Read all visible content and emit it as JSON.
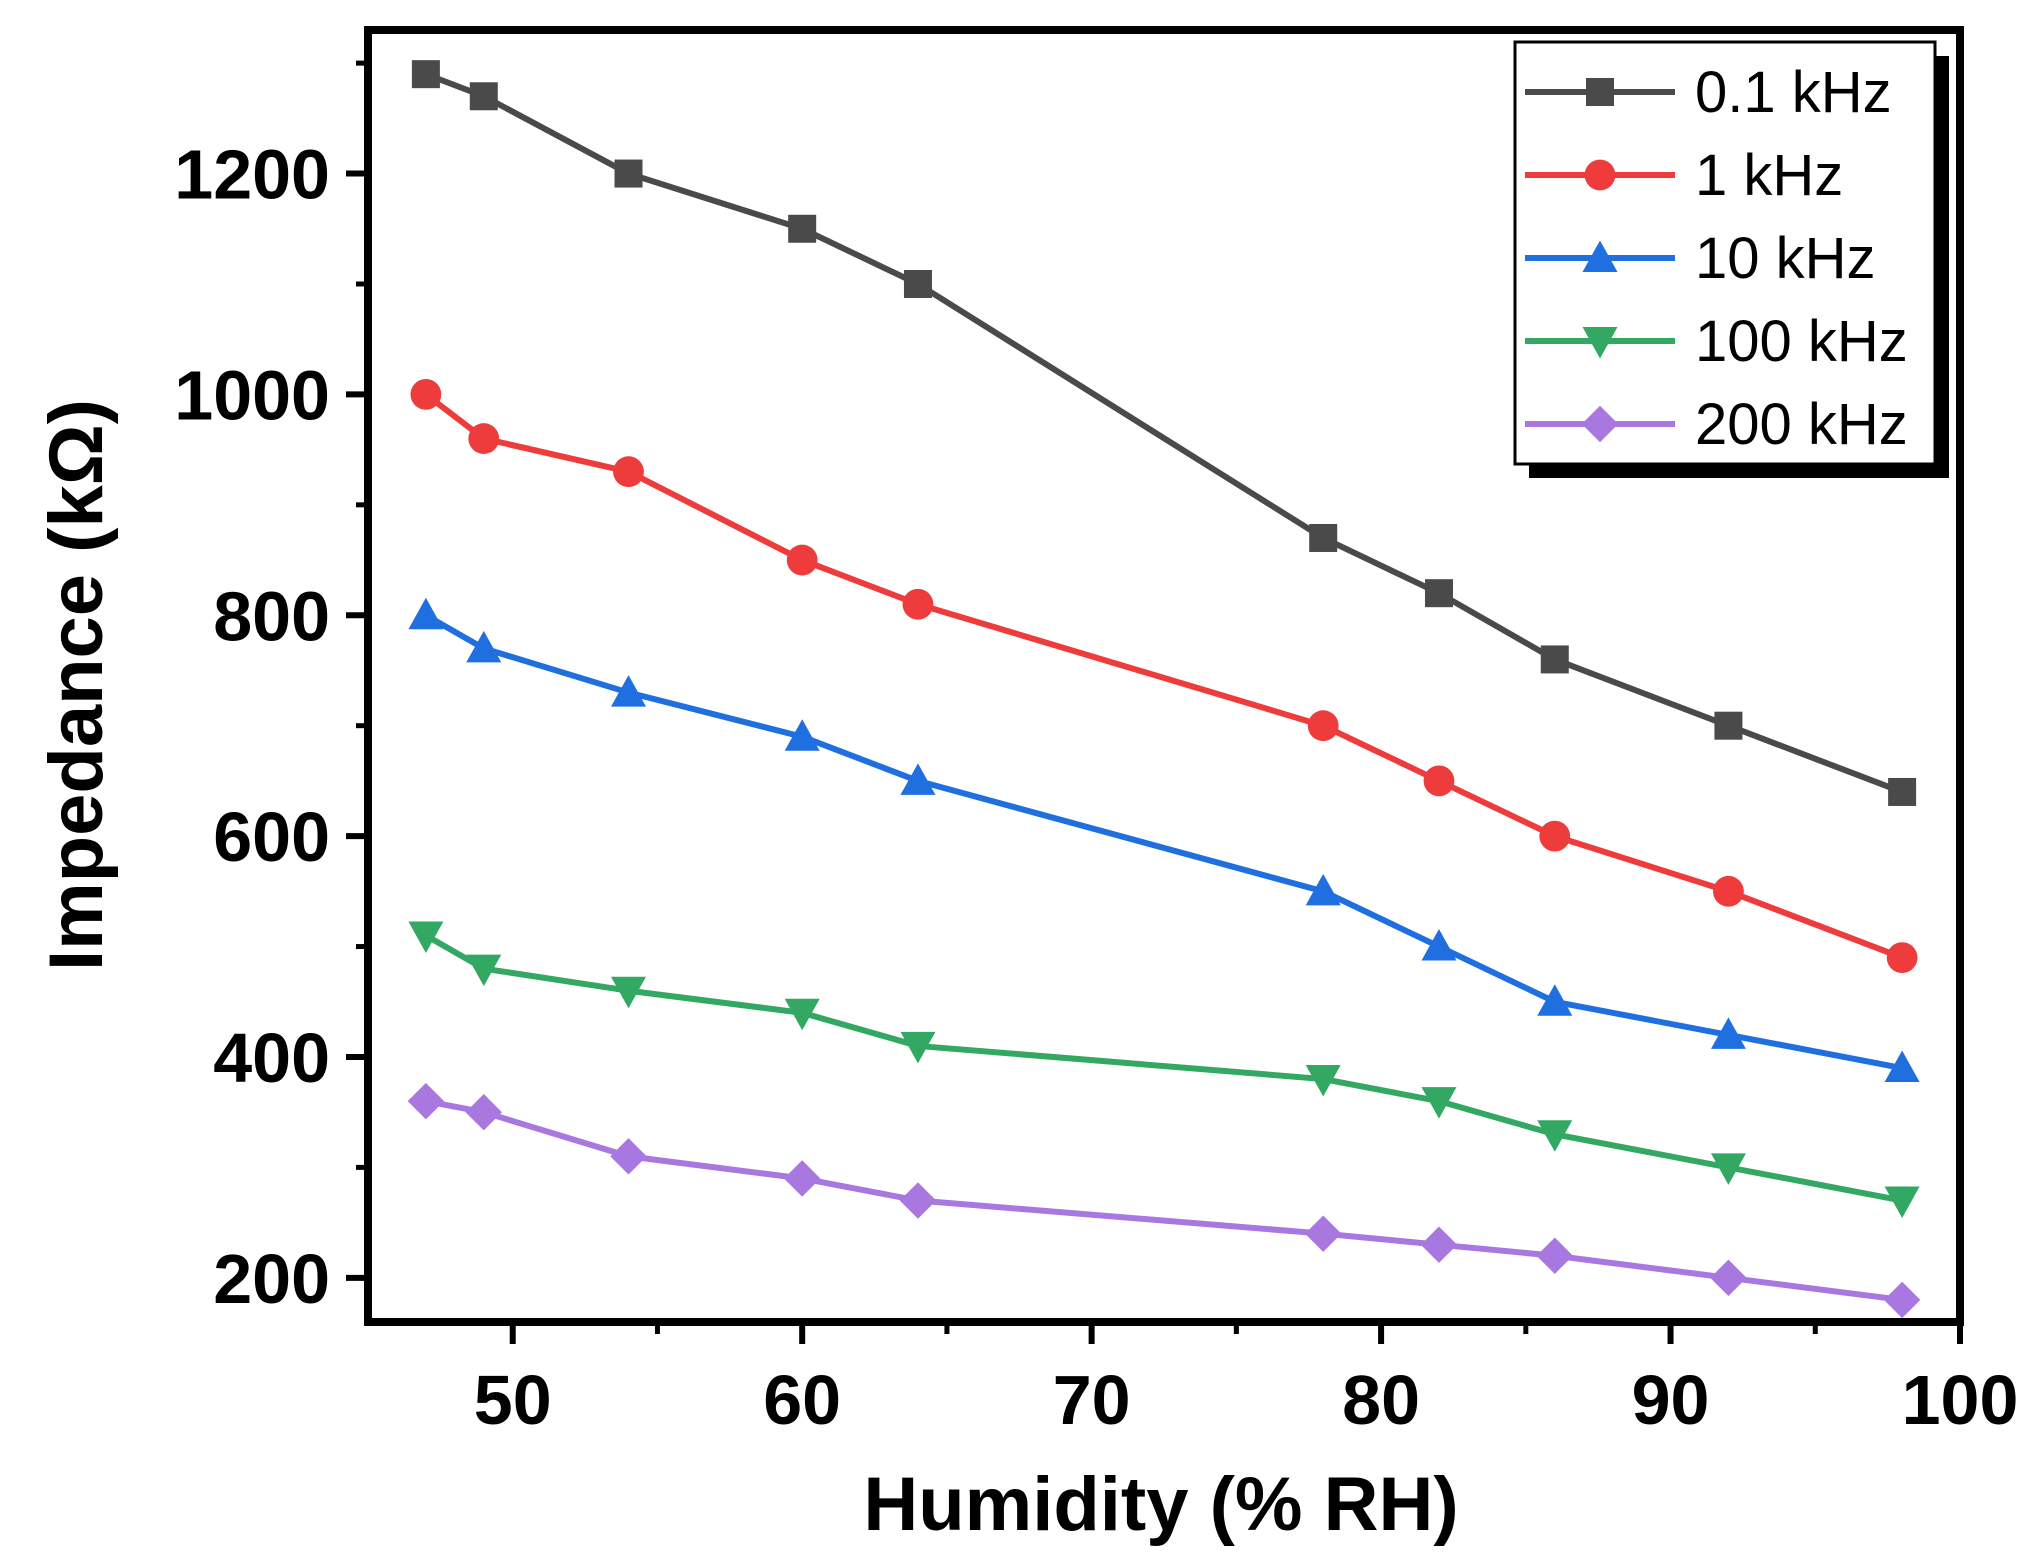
{
  "chart_data": {
    "type": "line",
    "title": "",
    "xlabel": "Humidity (% RH)",
    "ylabel": "Impedance (kΩ)",
    "xlim": [
      45,
      100
    ],
    "ylim": [
      160,
      1330
    ],
    "xticks": [
      50,
      60,
      70,
      80,
      90,
      100
    ],
    "xtick_labels": [
      "50",
      "60",
      "70",
      "80",
      "90",
      "100"
    ],
    "yticks": [
      200,
      400,
      600,
      800,
      1000,
      1200
    ],
    "ytick_labels": [
      "200",
      "400",
      "600",
      "800",
      "1000",
      "1200"
    ],
    "grid": false,
    "legend_position": "top-right",
    "x": [
      47,
      49,
      54,
      60,
      64,
      78,
      82,
      86,
      92,
      98
    ],
    "series": [
      {
        "name": "0.1 kHz",
        "color": "#4a4a4a",
        "marker": "square",
        "values": [
          1290,
          1270,
          1200,
          1150,
          1100,
          870,
          820,
          760,
          700,
          640
        ]
      },
      {
        "name": "1 kHz",
        "color": "#ee3b3b",
        "marker": "circle",
        "values": [
          1000,
          960,
          930,
          850,
          810,
          700,
          650,
          600,
          550,
          490
        ]
      },
      {
        "name": "10 kHz",
        "color": "#1f6fe0",
        "marker": "triangle-up",
        "values": [
          800,
          770,
          730,
          690,
          650,
          550,
          500,
          450,
          420,
          390
        ]
      },
      {
        "name": "100 kHz",
        "color": "#33a862",
        "marker": "triangle-down",
        "values": [
          510,
          480,
          460,
          440,
          410,
          380,
          360,
          330,
          300,
          270
        ]
      },
      {
        "name": "200 kHz",
        "color": "#a877e0",
        "marker": "diamond",
        "values": [
          360,
          350,
          310,
          290,
          270,
          240,
          230,
          220,
          200,
          180
        ]
      }
    ]
  }
}
